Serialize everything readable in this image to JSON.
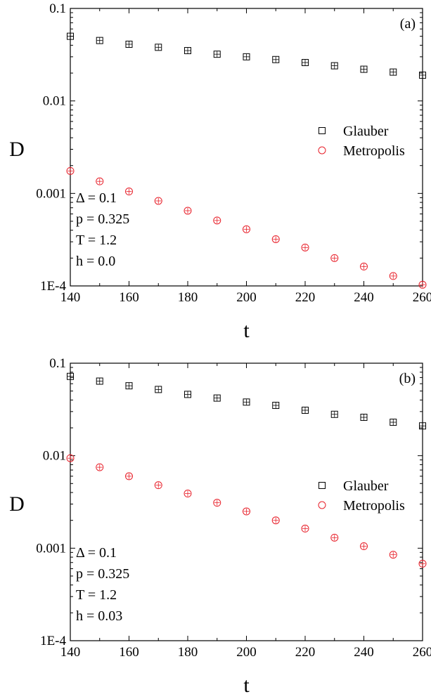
{
  "chart_data": [
    {
      "type": "scatter",
      "panel_label": "(a)",
      "xlabel": "t",
      "ylabel": "D",
      "xlim": [
        140,
        260
      ],
      "ylim": [
        0.0001,
        0.1
      ],
      "yscale": "log",
      "xticks": [
        140,
        160,
        180,
        200,
        220,
        240,
        260
      ],
      "xtick_labels": [
        "140",
        "160",
        "180",
        "200",
        "220",
        "240",
        "260"
      ],
      "yticks": [
        0.0001,
        0.001,
        0.01,
        0.1
      ],
      "ytick_labels": [
        "1E-4",
        "0.001",
        "0.01",
        "0.1"
      ],
      "grid": false,
      "legend_position": "right",
      "annotations": [
        "Δ = 0.1",
        "p = 0.325",
        "T = 1.2",
        "h = 0.0"
      ],
      "series": [
        {
          "name": "Glauber",
          "marker": "square",
          "color": "#000000",
          "x": [
            140,
            150,
            160,
            170,
            180,
            190,
            200,
            210,
            220,
            230,
            240,
            250,
            260
          ],
          "values": [
            0.05,
            0.045,
            0.041,
            0.038,
            0.035,
            0.032,
            0.03,
            0.028,
            0.026,
            0.024,
            0.022,
            0.0205,
            0.019
          ]
        },
        {
          "name": "Metropolis",
          "marker": "circle",
          "color": "#e8202a",
          "x": [
            140,
            150,
            160,
            170,
            180,
            190,
            200,
            210,
            220,
            230,
            240,
            250,
            260
          ],
          "values": [
            0.00175,
            0.00135,
            0.00105,
            0.00083,
            0.00065,
            0.00051,
            0.00041,
            0.00032,
            0.00026,
            0.0002,
            0.000162,
            0.000128,
            0.000103
          ]
        }
      ]
    },
    {
      "type": "scatter",
      "panel_label": "(b)",
      "xlabel": "t",
      "ylabel": "D",
      "xlim": [
        140,
        260
      ],
      "ylim": [
        0.0001,
        0.1
      ],
      "yscale": "log",
      "xticks": [
        140,
        160,
        180,
        200,
        220,
        240,
        260
      ],
      "xtick_labels": [
        "140",
        "160",
        "180",
        "200",
        "220",
        "240",
        "260"
      ],
      "yticks": [
        0.0001,
        0.001,
        0.01,
        0.1
      ],
      "ytick_labels": [
        "1E-4",
        "0.001",
        "0.01",
        "0.1"
      ],
      "grid": false,
      "legend_position": "right",
      "annotations": [
        "Δ = 0.1",
        "p = 0.325",
        "T = 1.2",
        "h = 0.03"
      ],
      "series": [
        {
          "name": "Glauber",
          "marker": "square",
          "color": "#000000",
          "x": [
            140,
            150,
            160,
            170,
            180,
            190,
            200,
            210,
            220,
            230,
            240,
            250,
            260
          ],
          "values": [
            0.072,
            0.064,
            0.057,
            0.052,
            0.046,
            0.042,
            0.038,
            0.035,
            0.031,
            0.028,
            0.026,
            0.023,
            0.021
          ]
        },
        {
          "name": "Metropolis",
          "marker": "circle",
          "color": "#e8202a",
          "x": [
            140,
            150,
            160,
            170,
            180,
            190,
            200,
            210,
            220,
            230,
            240,
            250,
            260
          ],
          "values": [
            0.0094,
            0.0075,
            0.006,
            0.0048,
            0.0039,
            0.0031,
            0.0025,
            0.002,
            0.00163,
            0.0013,
            0.00105,
            0.00085,
            0.00068
          ]
        }
      ]
    }
  ]
}
